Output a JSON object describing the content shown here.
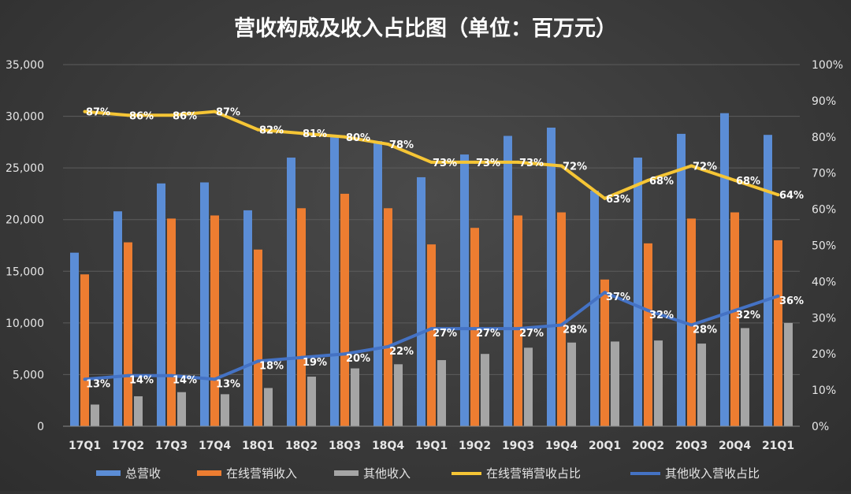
{
  "chart_data": {
    "type": "bar",
    "title": "营收构成及收入占比图（单位：百万元）",
    "categories": [
      "17Q1",
      "17Q2",
      "17Q3",
      "17Q4",
      "18Q1",
      "18Q2",
      "18Q3",
      "18Q4",
      "19Q1",
      "19Q2",
      "19Q3",
      "19Q4",
      "20Q1",
      "20Q2",
      "20Q3",
      "20Q4",
      "21Q1"
    ],
    "y_left": {
      "ticks": [
        "0",
        "5,000",
        "10,000",
        "15,000",
        "20,000",
        "25,000",
        "30,000",
        "35,000"
      ],
      "ylim": [
        0,
        35000
      ]
    },
    "y_right": {
      "ticks": [
        "0%",
        "10%",
        "20%",
        "30%",
        "40%",
        "50%",
        "60%",
        "70%",
        "80%",
        "90%",
        "100%"
      ],
      "ylim": [
        0,
        100
      ]
    },
    "bar_series": [
      {
        "name": "总营收",
        "color": "#5b8dd6",
        "values": [
          16800,
          20800,
          23500,
          23600,
          20900,
          26000,
          28200,
          27600,
          24100,
          26300,
          28100,
          28900,
          22800,
          26000,
          28300,
          30300,
          28200
        ]
      },
      {
        "name": "在线营销收入",
        "color": "#ed7d31",
        "values": [
          14700,
          17800,
          20100,
          20400,
          17100,
          21100,
          22500,
          21100,
          17600,
          19200,
          20400,
          20700,
          14200,
          17700,
          20100,
          20700,
          18000
        ]
      },
      {
        "name": "其他收入",
        "color": "#a5a5a5",
        "values": [
          2100,
          2900,
          3300,
          3100,
          3700,
          4800,
          5600,
          6000,
          6400,
          7000,
          7600,
          8100,
          8200,
          8300,
          8000,
          9500,
          10000
        ]
      }
    ],
    "line_series": [
      {
        "name": "在线营销营收占比",
        "color": "#f5c535",
        "values": [
          87,
          86,
          86,
          87,
          82,
          81,
          80,
          78,
          73,
          73,
          73,
          72,
          63,
          68,
          72,
          68,
          64
        ],
        "labels": [
          "87%",
          "86%",
          "86%",
          "87%",
          "82%",
          "81%",
          "80%",
          "78%",
          "73%",
          "73%",
          "73%",
          "72%",
          "63%",
          "68%",
          "72%",
          "68%",
          "64%"
        ]
      },
      {
        "name": "其他收入营收占比",
        "color": "#4472c4",
        "values": [
          13,
          14,
          14,
          13,
          18,
          19,
          20,
          22,
          27,
          27,
          27,
          28,
          37,
          32,
          28,
          32,
          36
        ],
        "labels": [
          "13%",
          "14%",
          "14%",
          "13%",
          "18%",
          "19%",
          "20%",
          "22%",
          "27%",
          "27%",
          "27%",
          "28%",
          "37%",
          "32%",
          "28%",
          "32%",
          "36%"
        ]
      }
    ],
    "legend_position": "bottom",
    "grid": true
  }
}
